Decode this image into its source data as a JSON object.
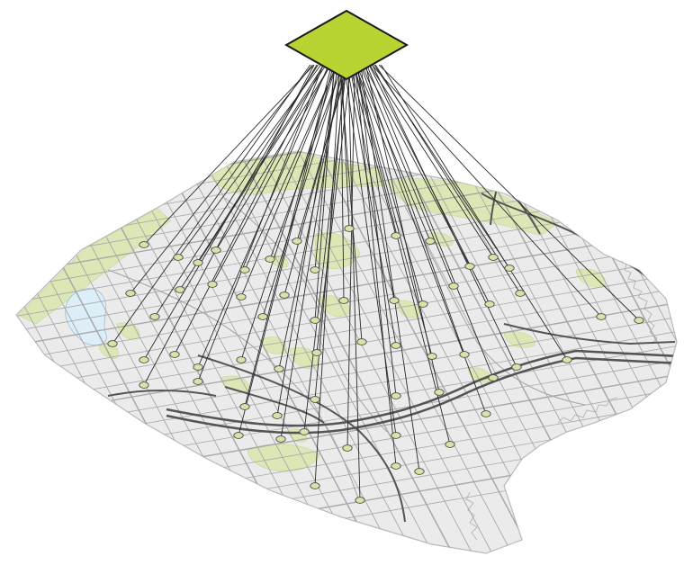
{
  "diagram": {
    "hub_shape": "diamond",
    "node_count": 42,
    "colors": {
      "hub_fill": "#b8d432",
      "hub_stroke": "#1a1a1a",
      "map_fill": "#ebebeb",
      "map_outline": "#b9b9b9",
      "park_fill": "#dbe7b4",
      "water_fill": "#dceef8",
      "street": "#a8a8a8",
      "highway": "#555555",
      "connector": "#2a2a2a",
      "node_fill": "#d9e3a8",
      "node_stroke": "#4d4d4d"
    }
  }
}
